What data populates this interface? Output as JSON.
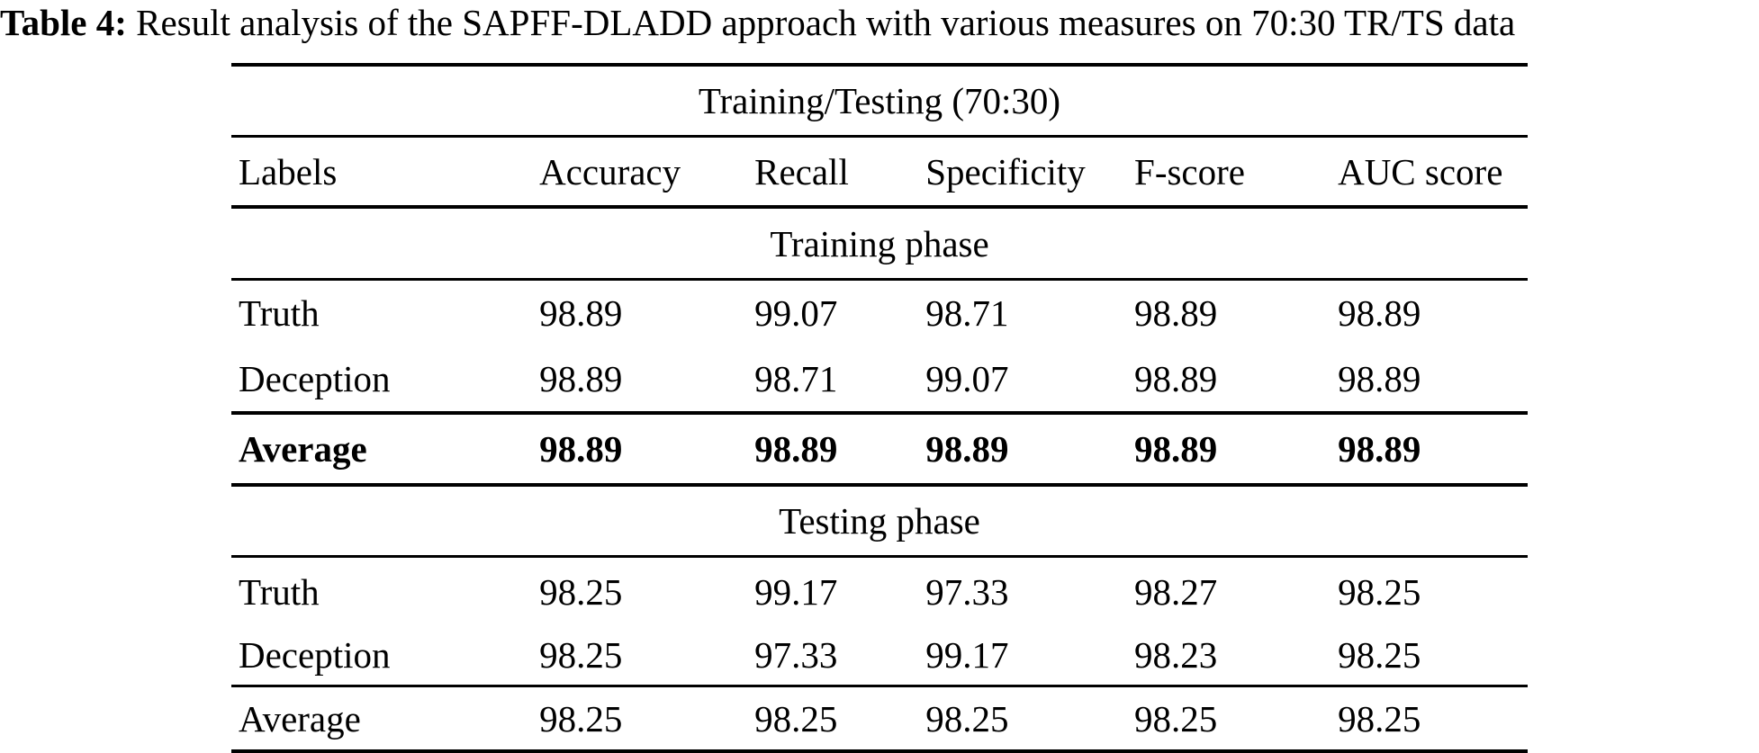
{
  "caption": {
    "label": "Table 4:",
    "text": " Result analysis of the SAPFF-DLADD approach with various measures on 70:30 TR/TS data"
  },
  "table": {
    "title": "Training/Testing (70:30)",
    "columns": [
      "Labels",
      "Accuracy",
      "Recall",
      "Specificity",
      "F-score",
      "AUC score"
    ],
    "training": {
      "section_label": "Training phase",
      "truth": {
        "label": "Truth",
        "values": [
          "98.89",
          "99.07",
          "98.71",
          "98.89",
          "98.89"
        ]
      },
      "deception": {
        "label": "Deception",
        "values": [
          "98.89",
          "98.71",
          "99.07",
          "98.89",
          "98.89"
        ]
      },
      "average": {
        "label": "Average",
        "values": [
          "98.89",
          "98.89",
          "98.89",
          "98.89",
          "98.89"
        ]
      }
    },
    "testing": {
      "section_label": "Testing phase",
      "truth": {
        "label": "Truth",
        "values": [
          "98.25",
          "99.17",
          "97.33",
          "98.27",
          "98.25"
        ]
      },
      "deception": {
        "label": "Deception",
        "values": [
          "98.25",
          "97.33",
          "99.17",
          "98.23",
          "98.25"
        ]
      },
      "average": {
        "label": "Average",
        "values": [
          "98.25",
          "98.25",
          "98.25",
          "98.25",
          "98.25"
        ]
      }
    }
  }
}
